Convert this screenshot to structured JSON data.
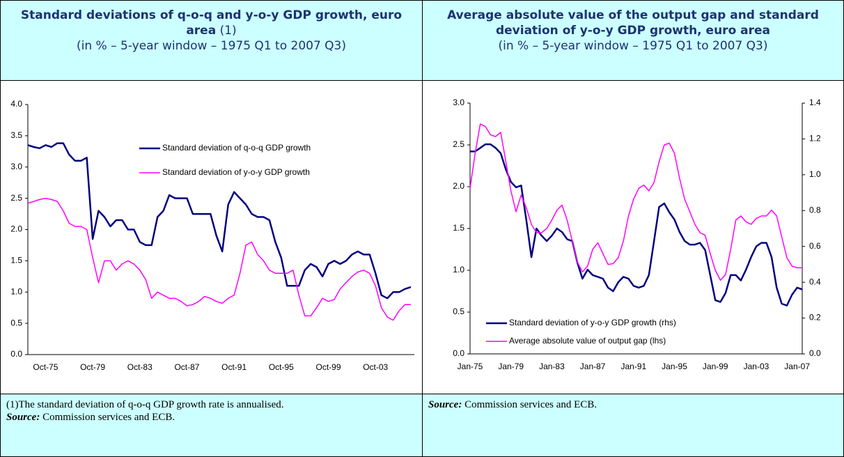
{
  "header": {
    "left": {
      "title": "Standard deviations of q-o-q and y-o-y GDP growth, euro area",
      "note": "(1)",
      "subtitle": "(in % – 5-year window – 1975 Q1 to 2007 Q3)"
    },
    "right": {
      "title": "Average absolute value of the output gap and standard deviation of y-o-y GDP growth, euro area",
      "subtitle": "(in % – 5-year window – 1975 Q1 to 2007 Q3)"
    }
  },
  "chart_data": [
    {
      "type": "line",
      "legend": "upper right",
      "categories": [
        null,
        null,
        null,
        "Oct-75",
        null,
        null,
        null,
        null,
        null,
        null,
        null,
        "Oct-79",
        null,
        null,
        null,
        null,
        null,
        null,
        null,
        "Oct-83",
        null,
        null,
        null,
        null,
        null,
        null,
        null,
        "Oct-87",
        null,
        null,
        null,
        null,
        null,
        null,
        null,
        "Oct-91",
        null,
        null,
        null,
        null,
        null,
        null,
        null,
        "Oct-95",
        null,
        null,
        null,
        null,
        null,
        null,
        null,
        "Oct-99",
        null,
        null,
        null,
        null,
        null,
        null,
        null,
        "Oct-03",
        null,
        null,
        null,
        null,
        null,
        null
      ],
      "ylim": [
        0,
        4
      ],
      "yticks": [
        {
          "value": 0,
          "label": "0.0"
        },
        0.5,
        {
          "value": 1,
          "label": "1.0"
        },
        1.5,
        {
          "value": 2,
          "label": "2.0"
        },
        2.5,
        {
          "value": 3,
          "label": "3.0"
        },
        3.5,
        {
          "value": 4,
          "label": "4.0"
        }
      ],
      "series": [
        {
          "name": "Standard deviation of q-o-q GDP growth",
          "color": "#000080",
          "values": [
            3.35,
            3.32,
            3.3,
            3.35,
            3.32,
            3.38,
            3.38,
            3.2,
            3.1,
            3.1,
            3.15,
            1.85,
            2.3,
            2.2,
            2.05,
            2.15,
            2.15,
            2.0,
            2.0,
            1.8,
            1.75,
            1.75,
            2.2,
            2.3,
            2.55,
            2.5,
            2.5,
            2.5,
            2.25,
            2.25,
            2.25,
            2.25,
            1.9,
            1.65,
            2.4,
            2.6,
            2.5,
            2.4,
            2.25,
            2.2,
            2.2,
            2.15,
            1.8,
            1.55,
            1.1,
            1.1,
            1.1,
            1.35,
            1.45,
            1.4,
            1.25,
            1.45,
            1.5,
            1.45,
            1.5,
            1.6,
            1.65,
            1.6,
            1.6,
            1.3,
            0.95,
            0.9,
            1.0,
            1.0,
            1.05,
            1.08
          ]
        },
        {
          "name": "Standard deviation of y-o-y GDP growth",
          "color": "#ff00ff",
          "values": [
            2.42,
            2.45,
            2.48,
            2.5,
            2.48,
            2.45,
            2.3,
            2.1,
            2.05,
            2.05,
            2.0,
            1.55,
            1.15,
            1.5,
            1.5,
            1.35,
            1.45,
            1.5,
            1.45,
            1.35,
            1.2,
            0.9,
            1.0,
            0.95,
            0.9,
            0.9,
            0.85,
            0.78,
            0.8,
            0.85,
            0.93,
            0.9,
            0.85,
            0.82,
            0.9,
            0.95,
            1.3,
            1.75,
            1.8,
            1.6,
            1.5,
            1.35,
            1.3,
            1.3,
            1.3,
            1.35,
            0.95,
            0.62,
            0.62,
            0.75,
            0.9,
            0.85,
            0.88,
            1.05,
            1.15,
            1.25,
            1.32,
            1.35,
            1.3,
            1.1,
            0.75,
            0.6,
            0.55,
            0.7,
            0.8,
            0.8
          ]
        }
      ]
    },
    {
      "type": "line",
      "legend": "lower left",
      "categories": [
        "Jan-75",
        null,
        null,
        null,
        null,
        null,
        null,
        null,
        "Jan-79",
        null,
        null,
        null,
        null,
        null,
        null,
        null,
        "Jan-83",
        null,
        null,
        null,
        null,
        null,
        null,
        null,
        "Jan-87",
        null,
        null,
        null,
        null,
        null,
        null,
        null,
        "Jan-91",
        null,
        null,
        null,
        null,
        null,
        null,
        null,
        "Jan-95",
        null,
        null,
        null,
        null,
        null,
        null,
        null,
        "Jan-99",
        null,
        null,
        null,
        null,
        null,
        null,
        null,
        "Jan-03",
        null,
        null,
        null,
        null,
        null,
        null,
        null,
        "Jan-07",
        null
      ],
      "ylim": [
        0,
        3
      ],
      "yticks": [
        {
          "value": 0,
          "label": "0.0"
        },
        0.5,
        {
          "value": 1,
          "label": "1.0"
        },
        1.5,
        {
          "value": 2,
          "label": "2.0"
        },
        2.5,
        {
          "value": 3,
          "label": "3.0"
        }
      ],
      "y2lim": [
        0,
        1.4
      ],
      "y2ticks": [
        {
          "value": 0,
          "label": "0.0"
        },
        0.2,
        0.4,
        0.6,
        0.8,
        {
          "value": 1,
          "label": "1.0"
        },
        1.2,
        1.4
      ],
      "series": [
        {
          "name": "Standard deviation of y-o-y GDP growth (rhs)",
          "color": "#000080",
          "axis": "y2",
          "values": [
            1.13,
            1.13,
            1.15,
            1.17,
            1.17,
            1.15,
            1.12,
            1.03,
            0.96,
            0.93,
            0.94,
            0.75,
            0.54,
            0.7,
            0.66,
            0.63,
            0.66,
            0.7,
            0.68,
            0.64,
            0.63,
            0.51,
            0.42,
            0.47,
            0.44,
            0.43,
            0.42,
            0.37,
            0.35,
            0.4,
            0.43,
            0.42,
            0.38,
            0.37,
            0.38,
            0.44,
            0.63,
            0.82,
            0.84,
            0.79,
            0.75,
            0.68,
            0.63,
            0.61,
            0.61,
            0.62,
            0.58,
            0.44,
            0.3,
            0.29,
            0.34,
            0.44,
            0.44,
            0.41,
            0.47,
            0.54,
            0.6,
            0.62,
            0.62,
            0.54,
            0.37,
            0.28,
            0.27,
            0.33,
            0.37,
            0.36
          ]
        },
        {
          "name": "Average absolute value of output gap (lhs)",
          "color": "#ff00ff",
          "values": [
            1.98,
            2.4,
            2.75,
            2.72,
            2.62,
            2.6,
            2.65,
            2.3,
            1.95,
            1.7,
            1.9,
            1.75,
            1.55,
            1.45,
            1.45,
            1.5,
            1.6,
            1.72,
            1.78,
            1.6,
            1.35,
            1.1,
            0.98,
            1.05,
            1.25,
            1.33,
            1.2,
            1.07,
            1.08,
            1.15,
            1.35,
            1.65,
            1.85,
            1.98,
            2.02,
            1.95,
            2.05,
            2.3,
            2.5,
            2.52,
            2.4,
            2.1,
            1.85,
            1.7,
            1.55,
            1.45,
            1.42,
            1.2,
            1.0,
            0.88,
            0.95,
            1.25,
            1.6,
            1.65,
            1.58,
            1.55,
            1.62,
            1.65,
            1.65,
            1.72,
            1.65,
            1.4,
            1.15,
            1.05,
            1.03,
            1.03
          ]
        }
      ]
    }
  ],
  "footer": {
    "left": {
      "note": "(1)The standard deviation of q-o-q GDP growth rate is annualised.",
      "source_label": "Source:",
      "source_text": " Commission services and ECB."
    },
    "right": {
      "source_label": "Source:",
      "source_text": " Commission services and ECB."
    }
  }
}
